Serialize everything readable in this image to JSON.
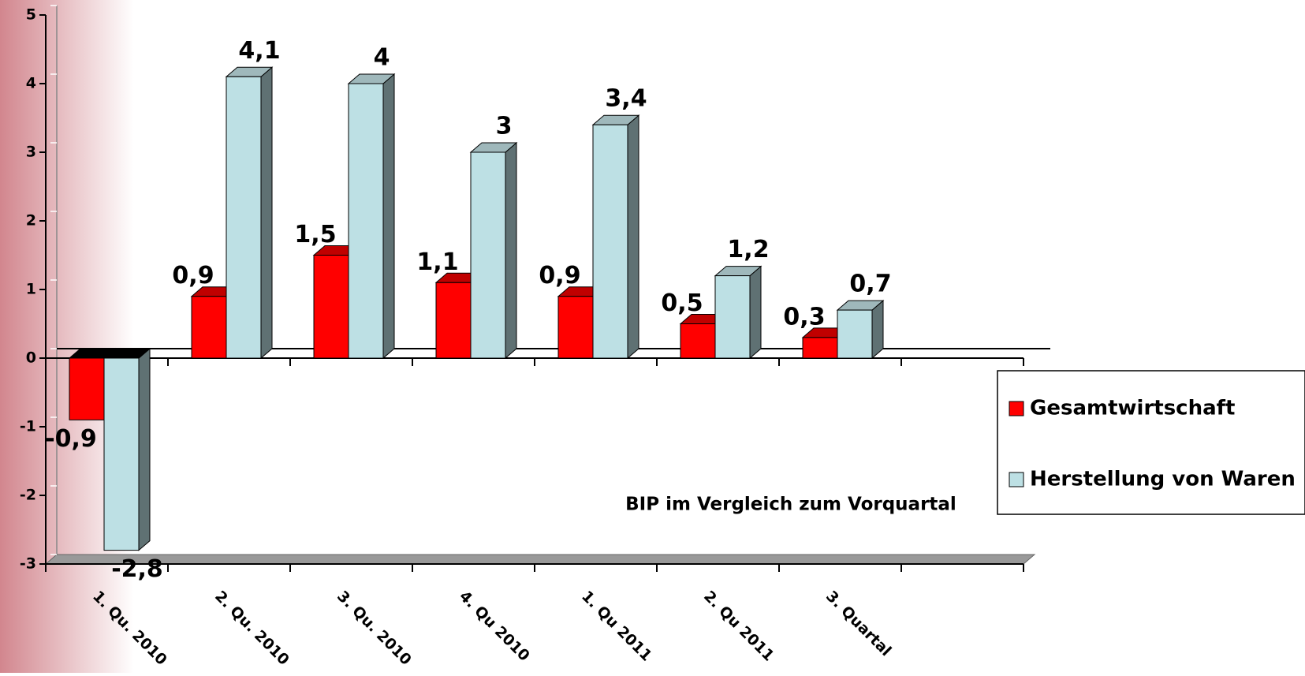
{
  "chart_data": {
    "type": "bar3d",
    "annotation": "BIP im Vergleich zum Vorquartal",
    "categories": [
      "1. Qu. 2010",
      "2. Qu. 2010",
      "3. Qu. 2010",
      "4. Qu 2010",
      "1. Qu 2011",
      "2. Qu 2011",
      "3. Quartal",
      null
    ],
    "series": [
      {
        "name": "Gesamtwirtschaft",
        "color": "#ff0000",
        "side": "#990000",
        "values": [
          -0.9,
          0.9,
          1.5,
          1.1,
          0.9,
          0.5,
          0.3,
          null
        ],
        "value_labels": [
          "-0,9",
          "0,9",
          "1,5",
          "1,1",
          "0,9",
          "0,5",
          "0,3",
          null
        ]
      },
      {
        "name": "Herstellung von Waren",
        "color": "#bde0e4",
        "side": "#5f7173",
        "values": [
          -2.8,
          4.1,
          4,
          3,
          3.4,
          1.2,
          0.7,
          null
        ],
        "value_labels": [
          "-2,8",
          "4,1",
          "4",
          "3",
          "3,4",
          "1,2",
          "0,7",
          null
        ]
      }
    ],
    "ylim": [
      -3,
      5
    ],
    "yticks": [
      -3,
      -2,
      -1,
      0,
      1,
      2,
      3,
      4,
      5
    ],
    "legend": "right"
  }
}
